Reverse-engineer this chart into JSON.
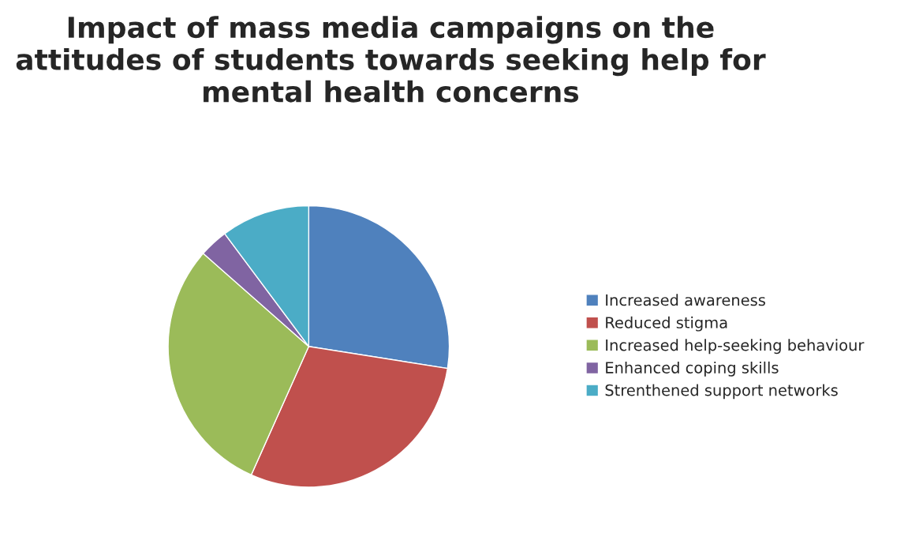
{
  "chart_data": {
    "type": "pie",
    "title": "Impact of mass media campaigns on the attitudes of students towards seeking help for mental health concerns",
    "categories": [
      "Increased awareness",
      "Reduced stigma",
      "Increased help-seeking behaviour",
      "Enhanced coping skills",
      "Strenthened support networks"
    ],
    "values": [
      27.5,
      29.2,
      29.8,
      3.3,
      10.2
    ],
    "colors": [
      "#4f81bd",
      "#c0504d",
      "#9bbb59",
      "#8064a2",
      "#4bacc6"
    ],
    "legend": "right"
  }
}
